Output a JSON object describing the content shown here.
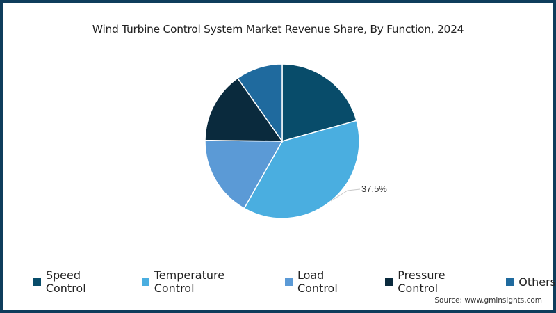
{
  "chart_data": {
    "type": "pie",
    "title": "Wind Turbine Control System Market Revenue Share, By Function, 2024",
    "categories": [
      "Speed Control",
      "Temperature Control",
      "Load Control",
      "Pressure Control",
      "Others"
    ],
    "values": [
      20.7,
      37.5,
      17.0,
      15.0,
      9.8
    ],
    "colors": [
      "#084c6a",
      "#4aaee0",
      "#5b9ad6",
      "#0a2a3d",
      "#1f6a9e"
    ],
    "data_labels": [
      {
        "category": "Temperature Control",
        "text": "37.5%"
      }
    ],
    "legend_position": "bottom",
    "start_angle_deg": 0,
    "direction": "clockwise"
  },
  "header": {
    "title": "Wind Turbine Control System Market Revenue Share, By Function, 2024"
  },
  "legend": {
    "items": [
      {
        "label": "Speed Control",
        "color": "#084c6a"
      },
      {
        "label": "Temperature Control",
        "color": "#4aaee0"
      },
      {
        "label": "Load Control",
        "color": "#5b9ad6"
      },
      {
        "label": "Pressure Control",
        "color": "#0a2a3d"
      },
      {
        "label": "Others",
        "color": "#1f6a9e"
      }
    ]
  },
  "annotation": {
    "temperature_label": "37.5%"
  },
  "footer": {
    "source": "Source: www.gminsights.com"
  },
  "theme": {
    "border_color": "#0f3d5c"
  }
}
